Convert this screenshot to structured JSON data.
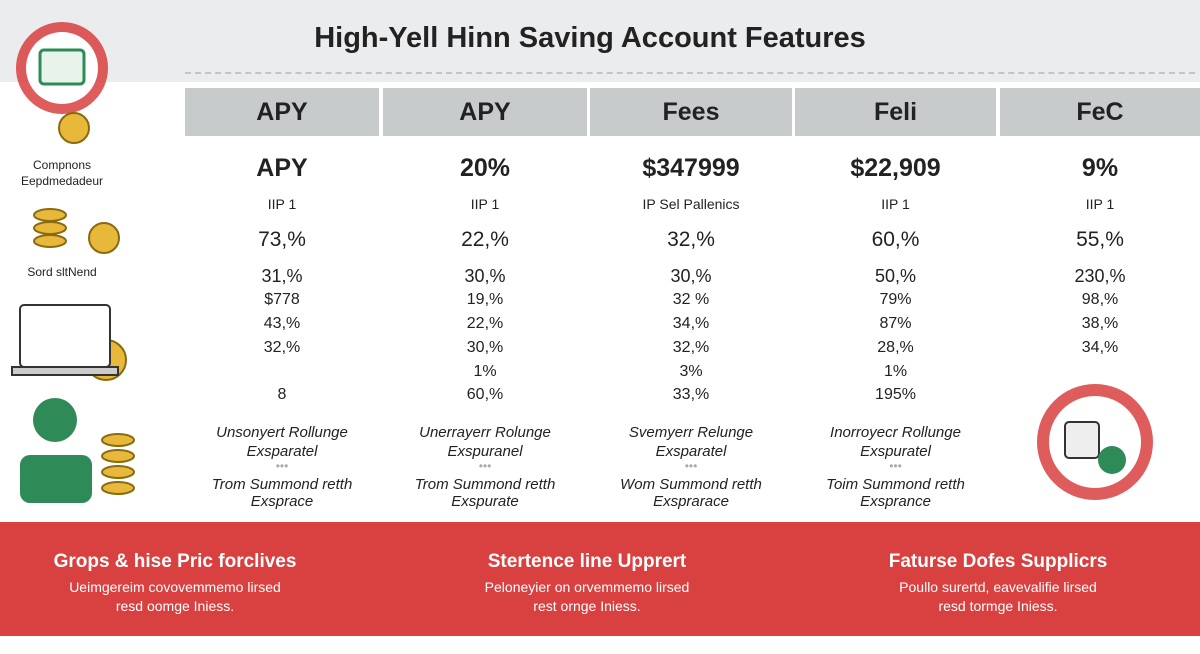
{
  "title": "High-Yell Hinn Saving Account Features",
  "side_labels": [
    [
      "Compnons",
      "Eepdmedadeur"
    ],
    [
      "Sord sltNend"
    ]
  ],
  "columns": [
    {
      "header": "APY",
      "cells": [
        "APY",
        "IIP 1",
        "73,%",
        "31,%",
        "$778",
        "43,%",
        "32,%",
        null,
        "8"
      ],
      "notes": [
        "Unsonyert Rollunge",
        "Exsparatel",
        "Trom Summond retth",
        "Exsprace"
      ]
    },
    {
      "header": "APY",
      "cells": [
        "20%",
        "IIP 1",
        "22,%",
        "30,%",
        "19,%",
        "22,%",
        "30,%",
        "1%",
        "60,%"
      ],
      "notes": [
        "Unerrayerr Rolunge",
        "Exspuranel",
        "Trom Summond retth",
        "Exspurate"
      ]
    },
    {
      "header": "Fees",
      "cells": [
        "$347999",
        "IP Sel Pallenics",
        "32,%",
        "30,%",
        "32 %",
        "34,%",
        "32,%",
        "3%",
        "33,%"
      ],
      "notes": [
        "Svemyerr Relunge",
        "Exsparatel",
        "Wom Summond retth",
        "Exsprarace"
      ]
    },
    {
      "header": "Feli",
      "cells": [
        "$22,909",
        "IIP 1",
        "60,%",
        "50,%",
        "79%",
        "87%",
        "28,%",
        "1%",
        "195%"
      ],
      "notes": [
        "Inorroyecr Rollunge",
        "Exspuratel",
        "Toim Summond retth",
        "Exsprance"
      ]
    },
    {
      "header": "FeC",
      "cells": [
        "9%",
        "IIP 1",
        "55,%",
        "230,%",
        "98,%",
        "38,%",
        "34,%",
        null,
        null
      ]
    }
  ],
  "footer": [
    {
      "title": "Grops & hise Pric forclives",
      "lines": [
        "Ueimgereim covovemmemo lirsed",
        "resd oomge Iniess."
      ]
    },
    {
      "title": "Stertence line Upprert",
      "lines": [
        "Peloneyier on orvemmemo lirsed",
        "rest ornge Iniess."
      ]
    },
    {
      "title": "Faturse Dofes Supplicrs",
      "lines": [
        "Poullo surertd, eavevalifie lirsed",
        "resd tormge Iniess."
      ]
    }
  ]
}
